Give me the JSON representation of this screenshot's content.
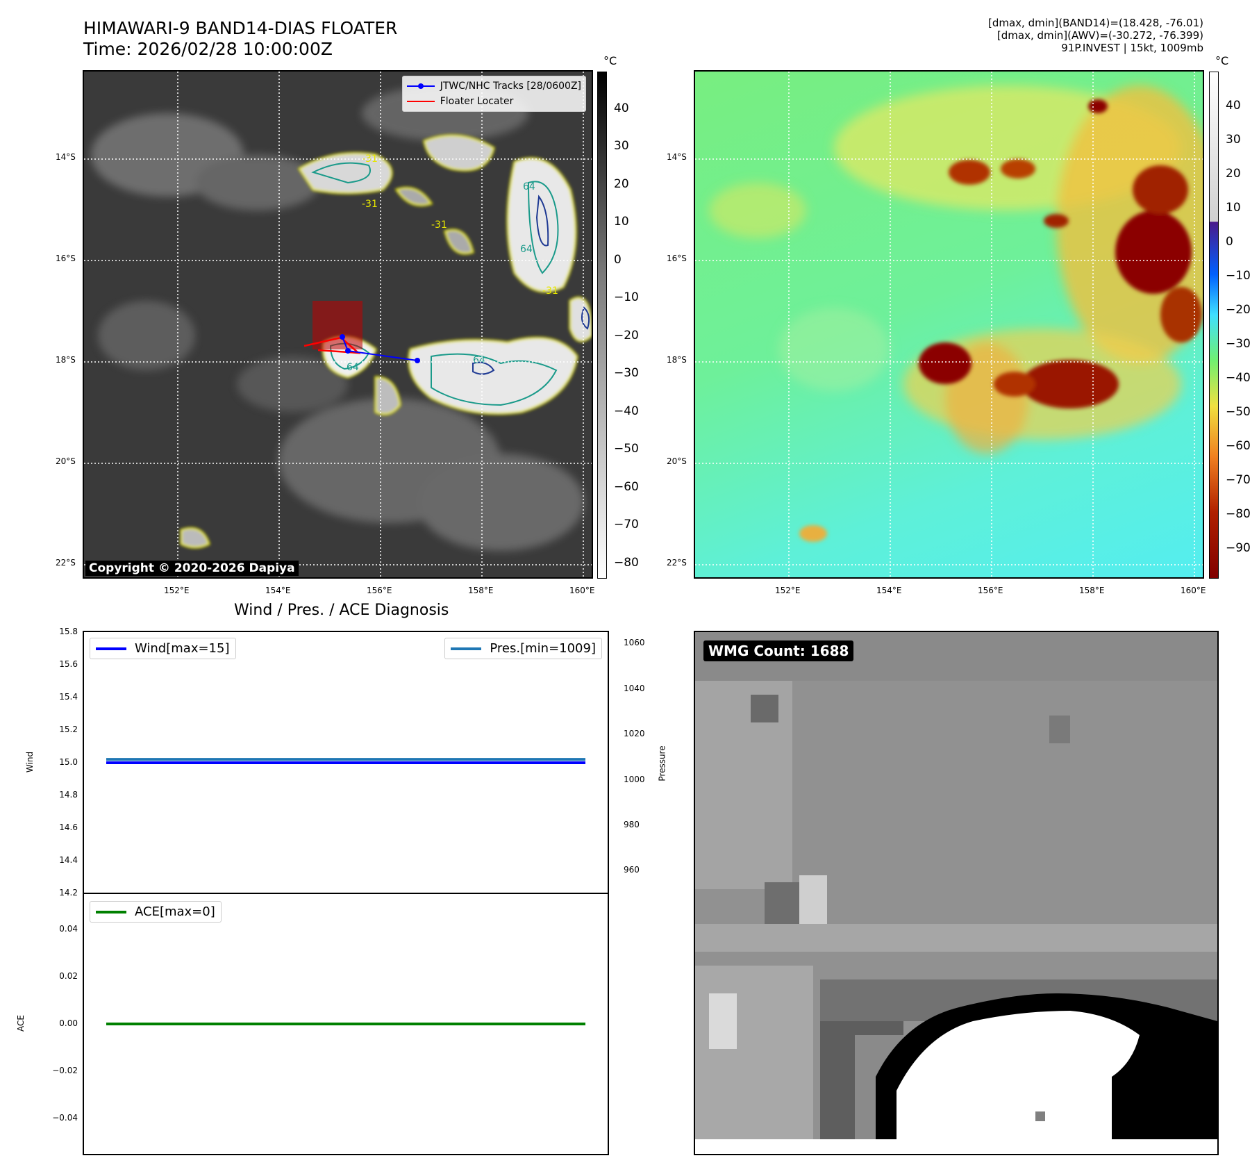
{
  "header": {
    "title_line1": "HIMAWARI-9 BAND14-DIAS FLOATER",
    "title_line2": "Time: 2026/02/28 10:00:00Z",
    "info_line1": "[dmax, dmin](BAND14)=(18.428, -76.01)",
    "info_line2": "[dmax, dmin](AWV)=(-30.272, -76.399)",
    "info_line3": "91P.INVEST | 15kt, 1009mb"
  },
  "map": {
    "lat_labels": [
      "14°S",
      "16°S",
      "18°S",
      "20°S",
      "22°S"
    ],
    "lon_labels": [
      "152°E",
      "154°E",
      "156°E",
      "158°E",
      "160°E"
    ],
    "copyright": "Copyright © 2020-2026 Dapiya",
    "legend": {
      "tracks": "JTWC/NHC Tracks [28/0600Z]",
      "floater": "Floater Locater"
    },
    "contour_labels": [
      "-31",
      "-31",
      "-31",
      "64",
      "64",
      "-31",
      "64",
      "64"
    ]
  },
  "colorbar_left": {
    "unit": "°C",
    "ticks": [
      "40",
      "30",
      "20",
      "10",
      "0",
      "−10",
      "−20",
      "−30",
      "−40",
      "−50",
      "−60",
      "−70",
      "−80"
    ]
  },
  "colorbar_right": {
    "unit": "°C",
    "ticks": [
      "40",
      "30",
      "20",
      "10",
      "0",
      "−10",
      "−20",
      "−30",
      "−40",
      "−50",
      "−60",
      "−70",
      "−80",
      "−90"
    ]
  },
  "diag": {
    "title": "Wind / Pres. / ACE Diagnosis",
    "wind_ylabel": "Wind",
    "pres_ylabel": "Pressure",
    "ace_ylabel": "ACE",
    "wind_legend": "Wind[max=15]",
    "pres_legend": "Pres.[min=1009]",
    "ace_legend": "ACE[max=0]",
    "wind_ticks": [
      "15.8",
      "15.6",
      "15.4",
      "15.2",
      "15.0",
      "14.8",
      "14.6",
      "14.4",
      "14.2"
    ],
    "pres_ticks": [
      "1060",
      "1040",
      "1020",
      "1000",
      "980",
      "960"
    ],
    "ace_ticks": [
      "0.04",
      "0.02",
      "0.00",
      "−0.02",
      "−0.04"
    ],
    "colors": {
      "wind": "#0000ff",
      "pres": "#1f77b4",
      "ace": "#008000"
    }
  },
  "chart_data": [
    {
      "type": "line",
      "title": "Wind / Pres. / ACE Diagnosis",
      "ylabel": "Wind",
      "ylim": [
        14.2,
        15.8
      ],
      "series": [
        {
          "name": "Wind[max=15]",
          "values": [
            15,
            15
          ]
        }
      ]
    },
    {
      "type": "line",
      "ylabel": "Pressure",
      "ylim": [
        950,
        1065
      ],
      "series": [
        {
          "name": "Pres.[min=1009]",
          "values": [
            1009,
            1009
          ]
        }
      ]
    },
    {
      "type": "line",
      "ylabel": "ACE",
      "ylim": [
        -0.055,
        0.055
      ],
      "series": [
        {
          "name": "ACE[max=0]",
          "values": [
            0,
            0
          ]
        }
      ]
    }
  ],
  "wmg": {
    "label": "WMG Count: 1688"
  }
}
